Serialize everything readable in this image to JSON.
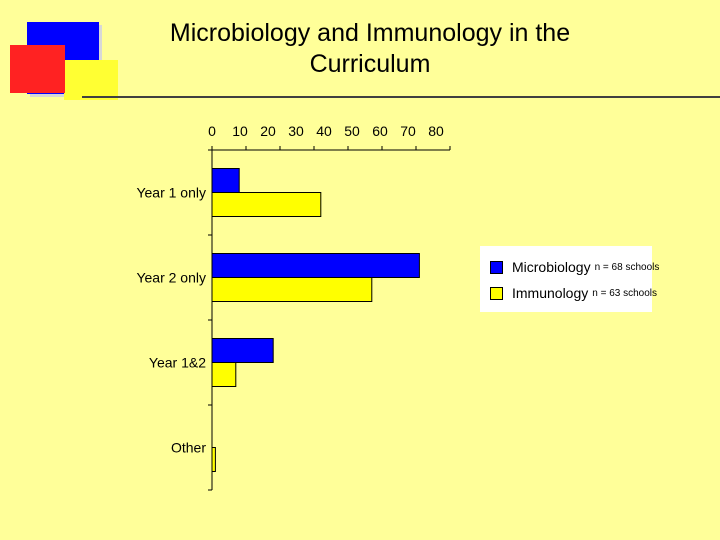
{
  "slide": {
    "title_line1": "Microbiology and Immunology in the",
    "title_line2": "Curriculum",
    "background_color": "#FFFF99"
  },
  "decoration": {
    "colors": {
      "blue": "#0000FF",
      "red": "#FF2222",
      "yellow": "#FFFF33",
      "rule": "#404040"
    }
  },
  "chart_data": {
    "type": "bar",
    "orientation": "horizontal",
    "categories": [
      "Year 1 only",
      "Year 2 only",
      "Year 1&2",
      "Other"
    ],
    "series": [
      {
        "name": "Microbiology",
        "note": "n = 68 schools",
        "color": "#0000FF",
        "values": [
          8,
          61,
          18,
          0
        ]
      },
      {
        "name": "Immunology",
        "note": "n = 63 schools",
        "color": "#FFFF00",
        "values": [
          32,
          47,
          7,
          1
        ]
      }
    ],
    "x_ticks": [
      0,
      10,
      20,
      30,
      40,
      50,
      60,
      70,
      80
    ],
    "xlim": [
      0,
      70
    ],
    "x_axis_position": "top",
    "grid": false,
    "legend_position": "right"
  }
}
